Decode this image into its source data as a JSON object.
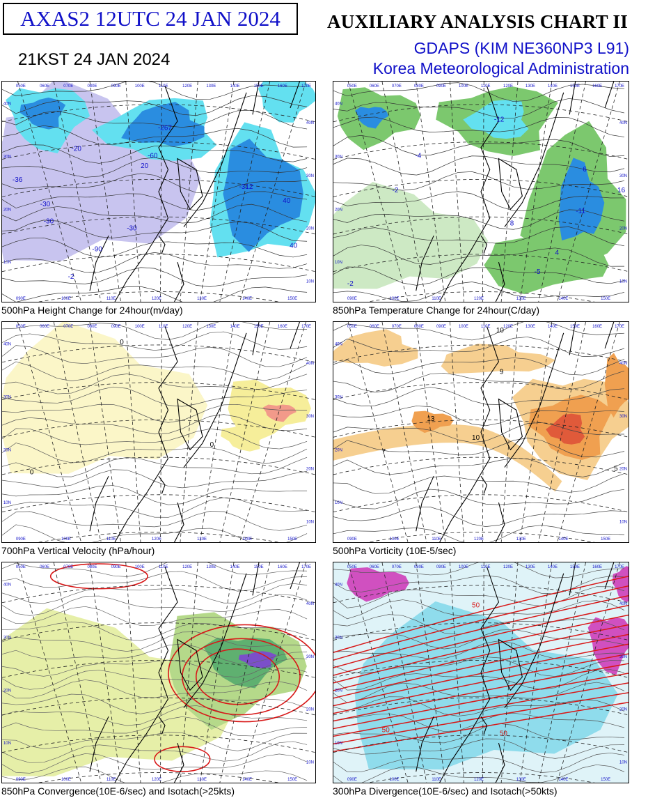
{
  "header": {
    "product_id": "AXAS2  12UTC 24 JAN 2024",
    "kst": "21KST 24 JAN 2024",
    "chart_title": "AUXILIARY ANALYSIS CHART II",
    "model": "GDAPS (KIM NE360NP3 L91)",
    "agency": "Korea Meteorological Administration"
  },
  "colors": {
    "title_blue": "#1010c8",
    "height_fall_blue": "#2a8de0",
    "height_fall_cyan": "#63e0f0",
    "height_fall_lavender": "#c8c4ef",
    "warming_green": "#7cc86e",
    "positive_vorticity_orange": "#f0a050",
    "ascent_yellow": "#f6ee9a",
    "isotach_red": "#d81818",
    "divergence_cyan": "#8fdcec",
    "divergence_magenta": "#d050c0"
  },
  "panels": [
    {
      "caption": "500hPa Height Change for 24hour(m/day)",
      "contour_labels": [
        "-267",
        "-312",
        "-60",
        "-30",
        "-90",
        "-36",
        "-30",
        "-30",
        "-2",
        "-20",
        "40",
        "40",
        "20",
        "20"
      ]
    },
    {
      "caption": "850hPa Temperature Change for 24hour(C/day)",
      "contour_labels": [
        "-12",
        "-11",
        "-5",
        "-4",
        "-2",
        "-2",
        "8",
        "16",
        "6",
        "4"
      ]
    },
    {
      "caption": "700hPa Vertical Velocity (hPa/hour)",
      "contour_labels": [
        "0",
        "0",
        "0"
      ]
    },
    {
      "caption": "500hPa Vorticity (10E-5/sec)",
      "contour_labels": [
        "10",
        "9",
        "7",
        "13",
        "10",
        "5"
      ]
    },
    {
      "caption": "850hPa Convergence(10E-6/sec) and Isotach(>25kts)",
      "contour_labels": []
    },
    {
      "caption": "300hPa Divergence(10E-6/sec) and Isotach(>50kts)",
      "contour_labels": [
        "50",
        "50",
        "50"
      ]
    }
  ],
  "map_grid": {
    "top_longitudes": [
      "050E",
      "060E",
      "070E",
      "080E",
      "090E",
      "100E",
      "110E",
      "120E",
      "130E",
      "140E",
      "150E",
      "160E",
      "170E"
    ],
    "bottom_longitudes": [
      "090E",
      "100E",
      "110E",
      "120E",
      "130E",
      "140E",
      "150E"
    ],
    "right_latitudes": [
      "40N",
      "30N",
      "20N",
      "10N"
    ],
    "left_latitudes": [
      "40N",
      "30N",
      "20N",
      "10N"
    ]
  }
}
